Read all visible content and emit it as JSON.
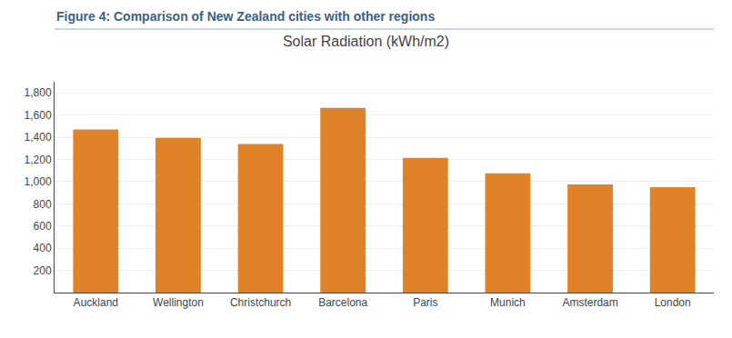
{
  "chart_data": {
    "type": "bar",
    "subtitle": "Figure 4: Comparison of New Zealand cities with other regions",
    "title": "Solar Radiation (kWh/m2)",
    "categories": [
      "Auckland",
      "Wellington",
      "Christchurch",
      "Barcelona",
      "Paris",
      "Munich",
      "Amsterdam",
      "London"
    ],
    "values": [
      1470,
      1395,
      1340,
      1665,
      1215,
      1075,
      975,
      950
    ],
    "color": "#E08228",
    "ylim": [
      0,
      1900
    ],
    "yticks": [
      200,
      400,
      600,
      800,
      {
        "value": 1000,
        "label": "1,000"
      },
      {
        "value": 1200,
        "label": "1,200"
      },
      {
        "value": 1400,
        "label": "1,400"
      },
      {
        "value": 1600,
        "label": "1,600"
      },
      {
        "value": 1800,
        "label": "1,800"
      }
    ],
    "grid": true
  }
}
